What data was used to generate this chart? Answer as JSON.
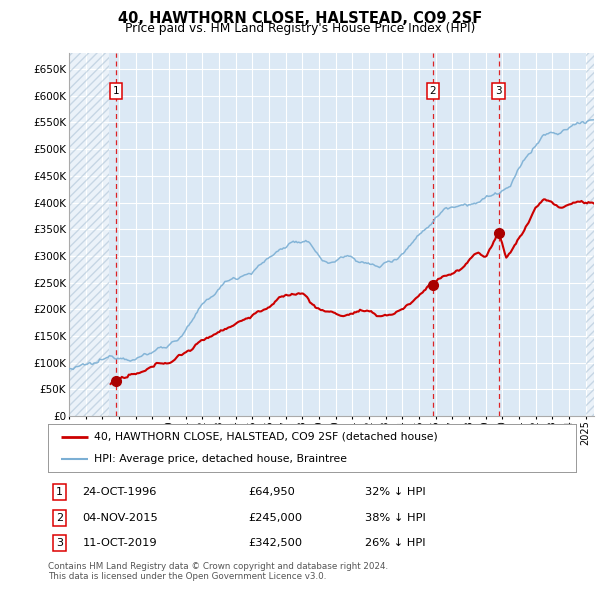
{
  "title": "40, HAWTHORN CLOSE, HALSTEAD, CO9 2SF",
  "subtitle": "Price paid vs. HM Land Registry's House Price Index (HPI)",
  "ylim": [
    0,
    680000
  ],
  "yticks": [
    0,
    50000,
    100000,
    150000,
    200000,
    250000,
    300000,
    350000,
    400000,
    450000,
    500000,
    550000,
    600000,
    650000
  ],
  "xlim_start": 1994.0,
  "xlim_end": 2025.5,
  "bg_color": "#dce9f5",
  "fig_color": "#ffffff",
  "grid_color": "#ffffff",
  "sale_dates": [
    1996.82,
    2015.84,
    2019.78
  ],
  "sale_prices": [
    64950,
    245000,
    342500
  ],
  "sale_labels": [
    "1",
    "2",
    "3"
  ],
  "legend_line1": "40, HAWTHORN CLOSE, HALSTEAD, CO9 2SF (detached house)",
  "legend_line2": "HPI: Average price, detached house, Braintree",
  "table_rows": [
    {
      "num": "1",
      "date": "24-OCT-1996",
      "price": "£64,950",
      "pct": "32% ↓ HPI"
    },
    {
      "num": "2",
      "date": "04-NOV-2015",
      "price": "£245,000",
      "pct": "38% ↓ HPI"
    },
    {
      "num": "3",
      "date": "11-OCT-2019",
      "price": "£342,500",
      "pct": "26% ↓ HPI"
    }
  ],
  "footnote": "Contains HM Land Registry data © Crown copyright and database right 2024.\nThis data is licensed under the Open Government Licence v3.0.",
  "hpi_color": "#7bafd4",
  "prop_color": "#cc0000",
  "vline_color": "#dd0000",
  "marker_color": "#aa0000"
}
